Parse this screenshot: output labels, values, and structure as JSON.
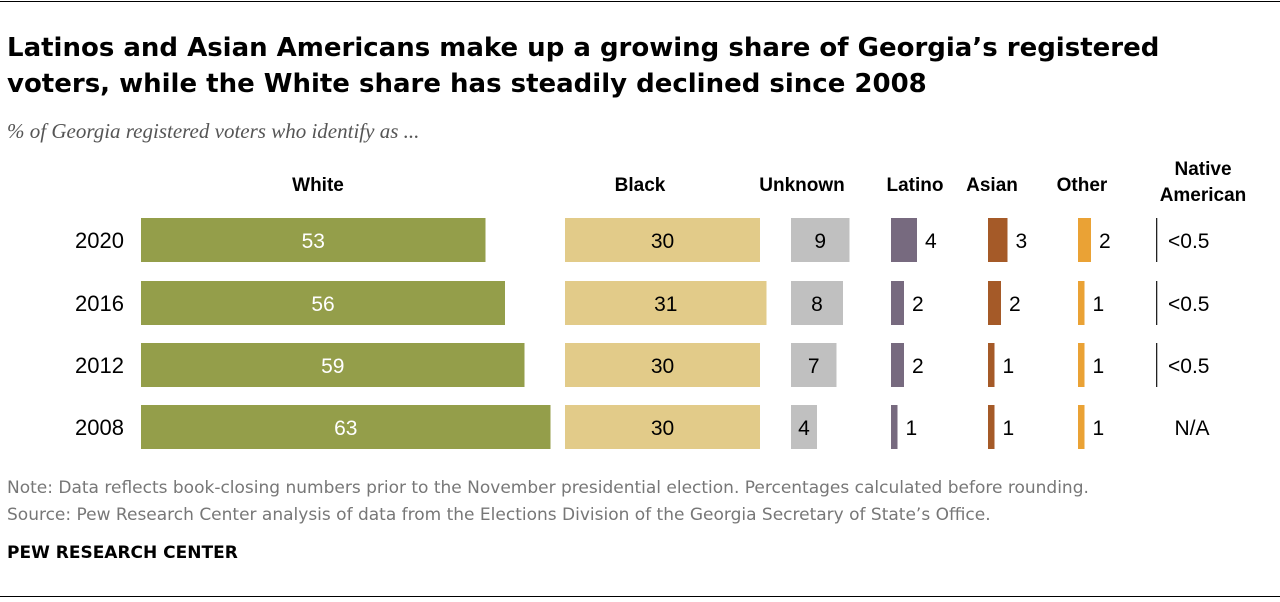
{
  "title": "Latinos and Asian Americans make up a growing share of Georgia’s registered voters, while the White share has steadily declined since 2008",
  "subtitle": "% of Georgia registered voters who identify as ...",
  "note": "Note: Data reflects book-closing numbers prior to the November presidential election. Percentages calculated before rounding.",
  "source": "Source: Pew Research Center analysis of data from the Elections Division of the Georgia Secretary of State’s Office.",
  "brand": "PEW RESEARCH CENTER",
  "chart_data": {
    "type": "bar",
    "categories": [
      "2020",
      "2016",
      "2012",
      "2008"
    ],
    "series": [
      {
        "name": "White",
        "values": [
          53,
          56,
          59,
          63
        ],
        "labels": [
          "53",
          "56",
          "59",
          "63"
        ],
        "color": "#949e4a"
      },
      {
        "name": "Black",
        "values": [
          30,
          31,
          30,
          30
        ],
        "labels": [
          "30",
          "31",
          "30",
          "30"
        ],
        "color": "#e2cb89"
      },
      {
        "name": "Unknown",
        "values": [
          9,
          8,
          7,
          4
        ],
        "labels": [
          "9",
          "8",
          "7",
          "4"
        ],
        "color": "#c0c0c0"
      },
      {
        "name": "Latino",
        "values": [
          4,
          2,
          2,
          1
        ],
        "labels": [
          "4",
          "2",
          "2",
          "1"
        ],
        "color": "#776a7f"
      },
      {
        "name": "Asian",
        "values": [
          3,
          2,
          1,
          1
        ],
        "labels": [
          "3",
          "2",
          "1",
          "1"
        ],
        "color": "#a55a28"
      },
      {
        "name": "Other",
        "values": [
          2,
          1,
          1,
          1
        ],
        "labels": [
          "2",
          "1",
          "1",
          "1"
        ],
        "color": "#eaa235"
      },
      {
        "name": "Native American",
        "values": [
          0.2,
          0.2,
          0.2,
          null
        ],
        "labels": [
          "<0.5",
          "<0.5",
          "<0.5",
          "N/A"
        ],
        "color": "#222222"
      }
    ],
    "legend": "column headers above each series"
  }
}
